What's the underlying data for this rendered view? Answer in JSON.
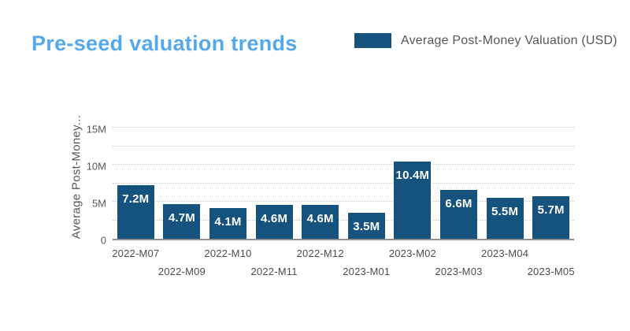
{
  "header": {
    "title": "Pre-seed valuation trends"
  },
  "legend": {
    "label": "Average Post-Money Valuation (USD)"
  },
  "colors": {
    "title": "#55A9EA",
    "bar": "#15527E",
    "bar_label": "#FFFFFF",
    "axis_line": "#8C8C8C",
    "gridline": "#C9C9C9",
    "axis_text": "#595959",
    "legend_text": "#54575C"
  },
  "chart_data": {
    "type": "bar",
    "title": "Pre-seed valuation trends",
    "series_name": "Average Post-Money Valuation (USD)",
    "unit": "millions USD",
    "categories": [
      "2022-M07",
      "2022-M09",
      "2022-M10",
      "2022-M11",
      "2022-M12",
      "2023-M01",
      "2023-M02",
      "2023-M03",
      "2023-M04",
      "2023-M05"
    ],
    "values": [
      7.2,
      4.7,
      4.1,
      4.6,
      4.6,
      3.5,
      10.4,
      6.6,
      5.5,
      5.7
    ],
    "bar_labels": [
      "7.2M",
      "4.7M",
      "4.1M",
      "4.6M",
      "4.6M",
      "3.5M",
      "10.4M",
      "6.6M",
      "5.5M",
      "5.7M"
    ],
    "xlabel": "",
    "ylabel": "Average Post-Money...",
    "ylim": [
      0,
      15
    ],
    "yticks": [
      {
        "value": 0,
        "label": "0"
      },
      {
        "value": 5,
        "label": "5M"
      },
      {
        "value": 10,
        "label": "10M"
      },
      {
        "value": 15,
        "label": "15M"
      }
    ],
    "gridline_step": 2.5,
    "grid": "horizontal-dotted",
    "legend_position": "top-right",
    "x_label_layout": "staggered-two-rows"
  }
}
